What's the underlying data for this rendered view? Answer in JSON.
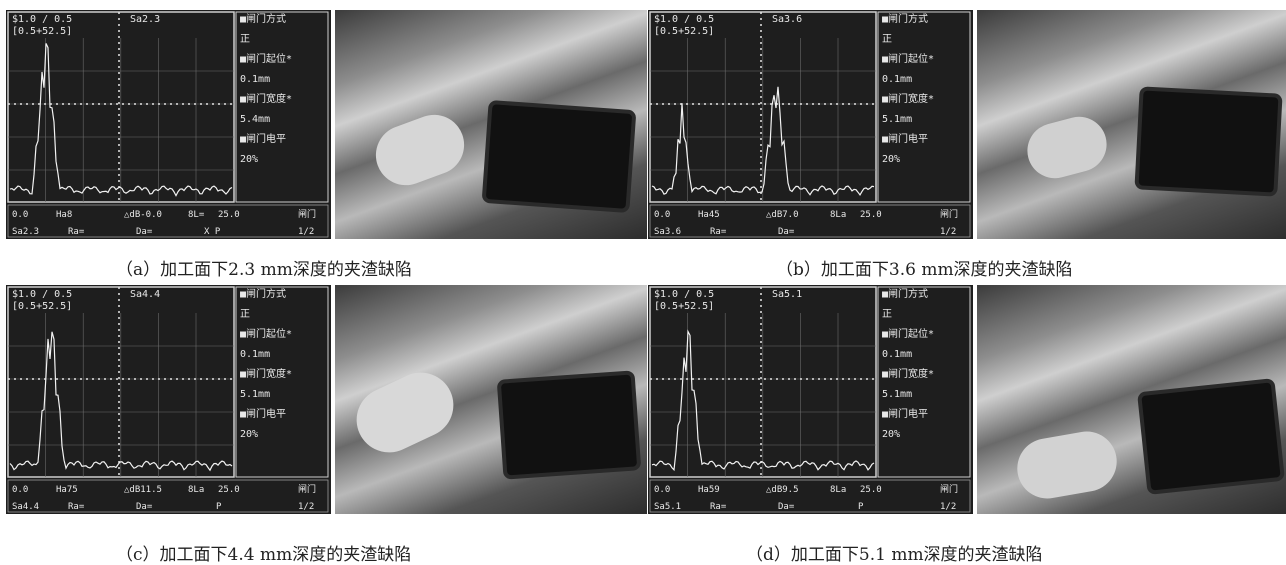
{
  "panels": [
    {
      "id": "a",
      "caption": "（a）加工面下2.3 mm深度的夹渣缺陷",
      "scope": {
        "top_left": "$1.0 / 0.5",
        "top_left2": "[0.5+52.5]",
        "top_mid": "Sa2.3",
        "menu": [
          "■闸门方式",
          "正",
          "■闸门起位*",
          "0.1mm",
          "■闸门宽度*",
          "5.4mm",
          "■闸门电平",
          "20%"
        ],
        "bottom_row1": [
          "0.0",
          "Ha8",
          "△dB-0.0",
          "8L=",
          "25.0"
        ],
        "bottom_row2": [
          "Sa2.3",
          "Ra=",
          "Da=",
          "X P"
        ],
        "gate": "闸门",
        "page": "1/2"
      }
    },
    {
      "id": "b",
      "caption": "（b）加工面下3.6 mm深度的夹渣缺陷",
      "scope": {
        "top_left": "$1.0 / 0.5",
        "top_left2": "[0.5+52.5]",
        "top_mid": "Sa3.6",
        "menu": [
          "■闸门方式",
          "正",
          "■闸门起位*",
          "0.1mm",
          "■闸门宽度*",
          "5.1mm",
          "■闸门电平",
          "20%"
        ],
        "bottom_row1": [
          "0.0",
          "Ha45",
          "△dB7.0",
          "8La",
          "25.0"
        ],
        "bottom_row2": [
          "Sa3.6",
          "Ra=",
          "Da="
        ],
        "gate": "闸门",
        "page": "1/2"
      }
    },
    {
      "id": "c",
      "caption": "（c）加工面下4.4 mm深度的夹渣缺陷",
      "scope": {
        "top_left": "$1.0 / 0.5",
        "top_left2": "[0.5+52.5]",
        "top_mid": "Sa4.4",
        "menu": [
          "■闸门方式",
          "正",
          "■闸门起位*",
          "0.1mm",
          "■闸门宽度*",
          "5.1mm",
          "■闸门电平",
          "20%"
        ],
        "bottom_row1": [
          "0.0",
          "Ha75",
          "△dB11.5",
          "8La",
          "25.0"
        ],
        "bottom_row2": [
          "Sa4.4",
          "Ra=",
          "Da=",
          "P"
        ],
        "gate": "闸门",
        "page": "1/2"
      }
    },
    {
      "id": "d",
      "caption": "（d）加工面下5.1 mm深度的夹渣缺陷",
      "scope": {
        "top_left": "$1.0 / 0.5",
        "top_left2": "[0.5+52.5]",
        "top_mid": "Sa5.1",
        "menu": [
          "■闸门方式",
          "正",
          "■闸门起位*",
          "0.1mm",
          "■闸门宽度*",
          "5.1mm",
          "■闸门电平",
          "20%"
        ],
        "bottom_row1": [
          "0.0",
          "Ha59",
          "△dB9.5",
          "8La",
          "25.0"
        ],
        "bottom_row2": [
          "Sa5.1",
          "Ra=",
          "Da=",
          "P"
        ],
        "gate": "闸门",
        "page": "1/2"
      }
    }
  ]
}
